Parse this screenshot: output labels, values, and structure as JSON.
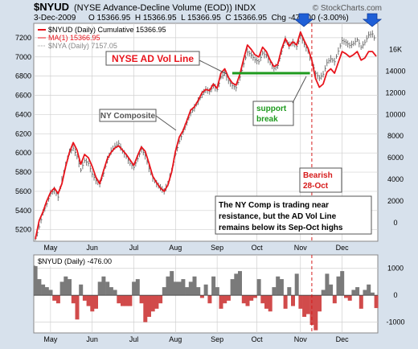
{
  "header": {
    "symbol": "$NYUD",
    "description": "(NYSE Advance-Decline Volume (EOD)) INDX",
    "date": "3-Dec-2009",
    "ohlc": "O 15366.95  H 15366.95  L 15366.95  C 15366.95  Chg -476.00 (-3.00%)",
    "copyright": "© StockCharts.com"
  },
  "legend": [
    {
      "label": "$NYUD (Daily) Cumulative 15366.95",
      "color": "#e8141c"
    },
    {
      "label": "MA(1) 15366.95",
      "color": "#e8141c"
    },
    {
      "label": "$NYA (Daily) 7157.05",
      "color": "#888888"
    }
  ],
  "annotations": {
    "ad_line": "NYSE AD Vol Line",
    "ny_composite": "NY Composite",
    "support_1": "support",
    "support_2": "break",
    "bearish_1": "Bearish",
    "bearish_2": "28-Oct",
    "note_1": "The NY Comp is trading near",
    "note_2": "resistance, but the AD Vol Line",
    "note_3": "remains below its Sep-Oct highs"
  },
  "lower_panel": {
    "label": "$NYUD (Daily) -476.00"
  },
  "colors": {
    "ad_line": "#e8141c",
    "nya_bars": "#666666",
    "support": "#1e9a1e",
    "bearish_line": "#d61c1c",
    "bearish_label": "#d61c1c",
    "hist_positive": "#7a7a7a",
    "hist_negative": "#d14b4b",
    "arrow": "#1f5fd6"
  },
  "chart_data": [
    {
      "type": "line",
      "title": "$NYUD (NYSE Advance-Decline Volume (EOD))",
      "x_ticks": [
        "May",
        "Jun",
        "Jul",
        "Aug",
        "Sep",
        "Oct",
        "Nov",
        "Dec"
      ],
      "left_axis": {
        "ticks": [
          5200,
          5400,
          5600,
          5800,
          6000,
          6200,
          6400,
          6600,
          6800,
          7000,
          7200
        ],
        "ylim": [
          5080,
          7350
        ]
      },
      "right_axis": {
        "ticks": [
          0,
          2000,
          4000,
          6000,
          8000,
          10000,
          12000,
          14000
        ],
        "extra_ticks": [
          "16K"
        ],
        "ylim": [
          -1700,
          18400
        ]
      },
      "grid": true,
      "legend": "top-left",
      "series": [
        {
          "name": "$NYUD (Daily) Cumulative",
          "axis": "right",
          "points": [
            [
              0,
              -1500
            ],
            [
              2,
              200
            ],
            [
              4,
              1000
            ],
            [
              6,
              2000
            ],
            [
              8,
              2800
            ],
            [
              10,
              3200
            ],
            [
              12,
              2700
            ],
            [
              14,
              3600
            ],
            [
              16,
              5200
            ],
            [
              18,
              6500
            ],
            [
              20,
              7400
            ],
            [
              22,
              6700
            ],
            [
              24,
              5400
            ],
            [
              26,
              6300
            ],
            [
              28,
              6000
            ],
            [
              30,
              5200
            ],
            [
              32,
              4200
            ],
            [
              34,
              3600
            ],
            [
              36,
              4800
            ],
            [
              38,
              5900
            ],
            [
              40,
              6500
            ],
            [
              42,
              6900
            ],
            [
              44,
              7100
            ],
            [
              46,
              6700
            ],
            [
              48,
              6300
            ],
            [
              50,
              5800
            ],
            [
              52,
              5300
            ],
            [
              54,
              6200
            ],
            [
              56,
              7000
            ],
            [
              58,
              6600
            ],
            [
              60,
              5500
            ],
            [
              62,
              4300
            ],
            [
              64,
              3700
            ],
            [
              66,
              3200
            ],
            [
              68,
              2900
            ],
            [
              70,
              3500
            ],
            [
              72,
              4700
            ],
            [
              74,
              6600
            ],
            [
              76,
              7900
            ],
            [
              78,
              8500
            ],
            [
              80,
              9400
            ],
            [
              82,
              10400
            ],
            [
              84,
              10700
            ],
            [
              86,
              11300
            ],
            [
              88,
              12000
            ],
            [
              90,
              12300
            ],
            [
              92,
              12200
            ],
            [
              94,
              12800
            ],
            [
              96,
              12400
            ],
            [
              98,
              13800
            ],
            [
              100,
              14200
            ],
            [
              102,
              13400
            ],
            [
              104,
              12900
            ],
            [
              106,
              12700
            ],
            [
              108,
              13700
            ],
            [
              110,
              15100
            ],
            [
              112,
              16400
            ],
            [
              114,
              16000
            ],
            [
              116,
              15500
            ],
            [
              118,
              15300
            ],
            [
              120,
              16200
            ],
            [
              122,
              15800
            ],
            [
              124,
              15000
            ],
            [
              126,
              14400
            ],
            [
              128,
              14600
            ],
            [
              130,
              16000
            ],
            [
              132,
              17000
            ],
            [
              134,
              16300
            ],
            [
              136,
              16700
            ],
            [
              138,
              16400
            ],
            [
              140,
              17600
            ],
            [
              142,
              16800
            ],
            [
              144,
              16100
            ],
            [
              146,
              15000
            ],
            [
              148,
              13300
            ],
            [
              150,
              12500
            ],
            [
              152,
              12800
            ],
            [
              154,
              13900
            ],
            [
              156,
              14200
            ],
            [
              158,
              13800
            ],
            [
              160,
              14800
            ],
            [
              162,
              15800
            ],
            [
              164,
              15600
            ],
            [
              166,
              15300
            ],
            [
              168,
              15500
            ],
            [
              170,
              15800
            ],
            [
              172,
              15000
            ],
            [
              174,
              15200
            ],
            [
              176,
              15800
            ],
            [
              178,
              15800
            ],
            [
              180,
              15367
            ]
          ]
        },
        {
          "name": "$NYA (Daily)",
          "axis": "left",
          "style": "hlc_bars",
          "points": [
            [
              0,
              5110
            ],
            [
              2,
              5230
            ],
            [
              4,
              5380
            ],
            [
              6,
              5470
            ],
            [
              8,
              5580
            ],
            [
              10,
              5610
            ],
            [
              12,
              5540
            ],
            [
              14,
              5720
            ],
            [
              16,
              5870
            ],
            [
              18,
              6010
            ],
            [
              20,
              6050
            ],
            [
              22,
              5960
            ],
            [
              24,
              5820
            ],
            [
              26,
              5920
            ],
            [
              28,
              5890
            ],
            [
              30,
              5780
            ],
            [
              32,
              5710
            ],
            [
              34,
              5680
            ],
            [
              36,
              5790
            ],
            [
              38,
              5930
            ],
            [
              40,
              6020
            ],
            [
              42,
              6070
            ],
            [
              44,
              6100
            ],
            [
              46,
              6020
            ],
            [
              48,
              5960
            ],
            [
              50,
              5890
            ],
            [
              52,
              5850
            ],
            [
              54,
              5940
            ],
            [
              56,
              6040
            ],
            [
              58,
              5970
            ],
            [
              60,
              5840
            ],
            [
              62,
              5740
            ],
            [
              64,
              5680
            ],
            [
              66,
              5640
            ],
            [
              68,
              5600
            ],
            [
              70,
              5680
            ],
            [
              72,
              5820
            ],
            [
              74,
              5990
            ],
            [
              76,
              6120
            ],
            [
              78,
              6220
            ],
            [
              80,
              6320
            ],
            [
              82,
              6420
            ],
            [
              84,
              6470
            ],
            [
              86,
              6540
            ],
            [
              88,
              6610
            ],
            [
              90,
              6660
            ],
            [
              92,
              6640
            ],
            [
              94,
              6700
            ],
            [
              96,
              6660
            ],
            [
              98,
              6790
            ],
            [
              100,
              6830
            ],
            [
              102,
              6750
            ],
            [
              104,
              6700
            ],
            [
              106,
              6680
            ],
            [
              108,
              6790
            ],
            [
              110,
              6930
            ],
            [
              112,
              7050
            ],
            [
              114,
              7020
            ],
            [
              116,
              6970
            ],
            [
              118,
              6950
            ],
            [
              120,
              7040
            ],
            [
              122,
              7010
            ],
            [
              124,
              6940
            ],
            [
              126,
              6880
            ],
            [
              128,
              6910
            ],
            [
              130,
              7060
            ],
            [
              132,
              7180
            ],
            [
              134,
              7120
            ],
            [
              136,
              7150
            ],
            [
              138,
              7110
            ],
            [
              140,
              7220
            ],
            [
              142,
              7130
            ],
            [
              144,
              7060
            ],
            [
              146,
              6940
            ],
            [
              148,
              6830
            ],
            [
              150,
              6780
            ],
            [
              152,
              6820
            ],
            [
              154,
              6940
            ],
            [
              156,
              6980
            ],
            [
              158,
              6950
            ],
            [
              160,
              7060
            ],
            [
              162,
              7170
            ],
            [
              164,
              7150
            ],
            [
              166,
              7120
            ],
            [
              168,
              7140
            ],
            [
              170,
              7180
            ],
            [
              172,
              7100
            ],
            [
              174,
              7150
            ],
            [
              176,
              7230
            ],
            [
              178,
              7240
            ],
            [
              180,
              7157
            ]
          ]
        }
      ],
      "reference_lines": [
        {
          "type": "horizontal",
          "axis": "right",
          "value": 13800,
          "x_range": [
            104,
            145
          ],
          "label": "support break"
        },
        {
          "type": "vertical",
          "x": 146,
          "label": "Bearish 28-Oct"
        }
      ]
    },
    {
      "type": "bar",
      "title": "$NYUD (Daily) -476.00",
      "x_ticks": [
        "May",
        "Jun",
        "Jul",
        "Aug",
        "Sep",
        "Oct",
        "Nov",
        "Dec"
      ],
      "y_ticks": [
        -1000,
        0,
        1000
      ],
      "ylim": [
        -1400,
        1500
      ],
      "series": [
        {
          "name": "$NYUD (Daily)",
          "values": [
            1100,
            600,
            400,
            300,
            200,
            -200,
            -300,
            500,
            700,
            600,
            -300,
            -900,
            400,
            -200,
            -400,
            -600,
            -500,
            500,
            700,
            500,
            300,
            200,
            -300,
            -400,
            -400,
            -400,
            500,
            600,
            -300,
            -1000,
            -800,
            -600,
            -500,
            -300,
            300,
            700,
            900,
            500,
            500,
            600,
            300,
            500,
            700,
            300,
            -100,
            400,
            -300,
            700,
            300,
            -500,
            -300,
            -200,
            600,
            800,
            900,
            -300,
            -400,
            -200,
            -100,
            600,
            -300,
            -500,
            -600,
            300,
            700,
            600,
            -500,
            300,
            -400,
            800,
            -500,
            -800,
            -700,
            -1100,
            -1300,
            -600,
            200,
            800,
            400,
            -300,
            700,
            900,
            -100,
            -200,
            200,
            300,
            -500,
            200,
            400,
            100,
            -476
          ]
        }
      ]
    }
  ]
}
